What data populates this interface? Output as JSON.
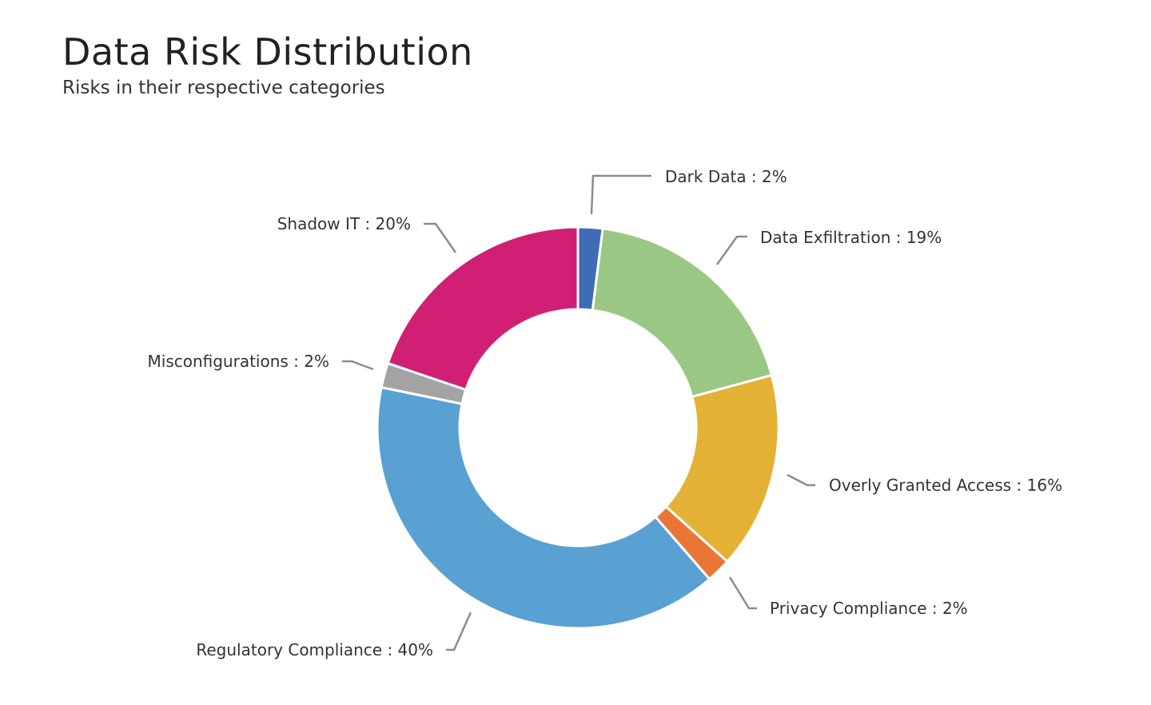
{
  "chart_data": {
    "type": "pie",
    "title": "Data Risk Distribution",
    "subtitle": "Risks in their respective categories",
    "donut": true,
    "legend": "none",
    "slices": [
      {
        "label": "Dark Data",
        "value": 2,
        "display": "Dark Data : 2%",
        "color": "#3f6db5"
      },
      {
        "label": "Data Exfiltration",
        "value": 19,
        "display": "Data Exfiltration : 19%",
        "color": "#9bc784"
      },
      {
        "label": "Overly Granted Access",
        "value": 16,
        "display": "Overly Granted Access : 16%",
        "color": "#e3b134"
      },
      {
        "label": "Privacy Compliance",
        "value": 2,
        "display": "Privacy Compliance : 2%",
        "color": "#ea7636"
      },
      {
        "label": "Regulatory Compliance",
        "value": 40,
        "display": "Regulatory Compliance : 40%",
        "color": "#59a0d3"
      },
      {
        "label": "Misconfigurations",
        "value": 2,
        "display": "Misconfigurations : 2%",
        "color": "#a3a3a3"
      },
      {
        "label": "Shadow IT",
        "value": 20,
        "display": "Shadow IT : 20%",
        "color": "#d11f73"
      }
    ]
  }
}
